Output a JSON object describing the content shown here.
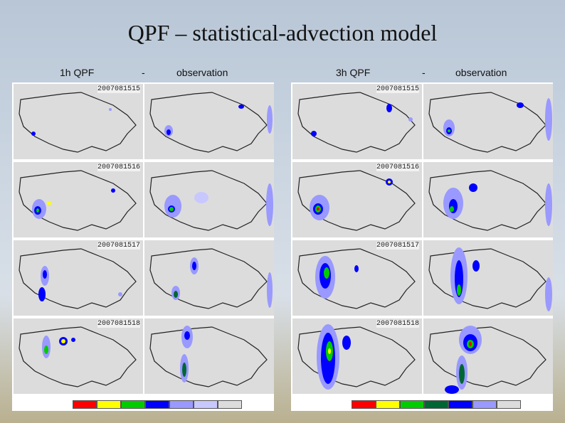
{
  "title": "QPF – statistical-advection model",
  "headers": {
    "left_qpf": "1h QPF",
    "left_dash": "-",
    "left_obs": "observation",
    "right_qpf": "3h QPF",
    "right_dash": "-",
    "right_obs": "observation"
  },
  "timestamps": {
    "left": [
      "2007081515",
      "2007081516",
      "2007081517",
      "2007081518"
    ],
    "right": [
      "2007081515",
      "2007081516",
      "2007081517",
      "2007081518"
    ]
  },
  "legend_colors": [
    "#ff0000",
    "#ffff00",
    "#00cc00",
    "#006633",
    "#0000ff",
    "#9999ff",
    "#c8c8ff",
    "#dcdcdc"
  ],
  "legend_ticks": [
    "",
    "",
    "",
    "",
    "",
    "",
    ""
  ]
}
